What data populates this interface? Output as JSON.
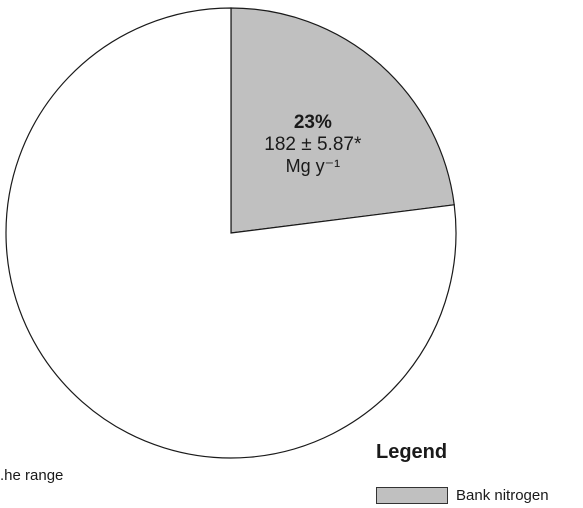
{
  "chart_data": {
    "type": "pie",
    "slices": [
      {
        "name": "Bank nitrogen",
        "percent": 23,
        "percent_label": "23%",
        "value_label": "182 ± 5.87*",
        "unit_label": "Mg y⁻¹",
        "color": "#c0c0c0"
      },
      {
        "name": "",
        "percent": 77,
        "color": "#ffffff"
      }
    ],
    "start": "12 o'clock",
    "direction": "clockwise",
    "legend": {
      "title": "Legend",
      "placement": "bottom-right",
      "items": [
        {
          "label": "Bank nitrogen",
          "color": "#c0c0c0"
        }
      ]
    },
    "footnote_visible": "he range."
  }
}
